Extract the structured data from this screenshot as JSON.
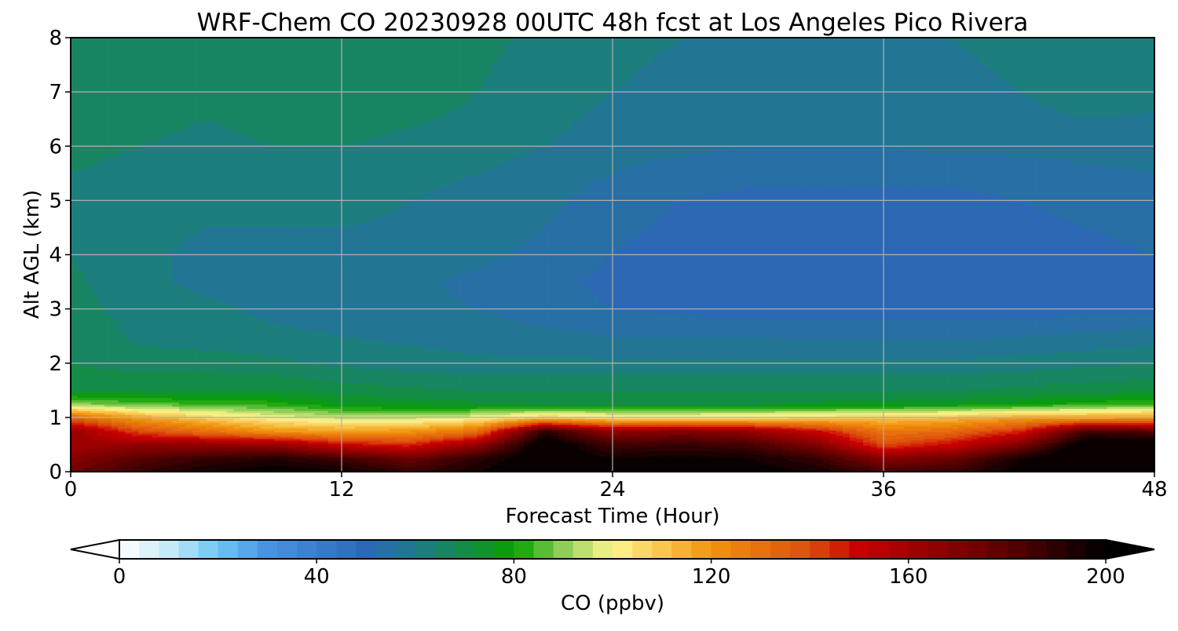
{
  "chart_data": {
    "type": "heatmap",
    "title": "WRF-Chem CO  20230928 00UTC 48h fcst at Los Angeles Pico Rivera",
    "xlabel": "Forecast Time (Hour)",
    "ylabel": "Alt AGL (km)",
    "xlim": [
      0,
      48
    ],
    "ylim": [
      0,
      8
    ],
    "x_ticks": [
      "0",
      "12",
      "24",
      "36",
      "48"
    ],
    "y_ticks": [
      "0",
      "1",
      "2",
      "3",
      "4",
      "5",
      "6",
      "7",
      "8"
    ],
    "grid": true,
    "x": [
      0,
      3,
      6,
      9,
      12,
      15,
      18,
      21,
      24,
      27,
      30,
      33,
      36,
      39,
      42,
      45,
      48
    ],
    "y": [
      0.0,
      0.25,
      0.5,
      0.75,
      1.0,
      1.25,
      1.5,
      2.0,
      2.5,
      3.0,
      3.5,
      4.0,
      5.0,
      5.5,
      6.0,
      7.0,
      8.0
    ],
    "z": [
      [
        175,
        188,
        196,
        200,
        198,
        188,
        196,
        205,
        200,
        202,
        200,
        196,
        185,
        188,
        200,
        210,
        212
      ],
      [
        168,
        180,
        188,
        192,
        185,
        175,
        190,
        205,
        196,
        198,
        196,
        188,
        168,
        175,
        195,
        210,
        212
      ],
      [
        160,
        165,
        165,
        165,
        150,
        145,
        165,
        205,
        185,
        188,
        185,
        170,
        140,
        150,
        170,
        205,
        208
      ],
      [
        165,
        140,
        130,
        120,
        118,
        120,
        130,
        190,
        165,
        170,
        165,
        150,
        128,
        132,
        145,
        185,
        180
      ],
      [
        135,
        118,
        108,
        100,
        95,
        95,
        100,
        110,
        105,
        105,
        106,
        108,
        110,
        112,
        118,
        118,
        120
      ],
      [
        90,
        86,
        84,
        82,
        76,
        74,
        73,
        72,
        72,
        72,
        72,
        73,
        74,
        76,
        78,
        82,
        84
      ],
      [
        72,
        72,
        72,
        72,
        70,
        69,
        68,
        68,
        68,
        68,
        68,
        68,
        68,
        68,
        69,
        70,
        71
      ],
      [
        68,
        66,
        66,
        65,
        63,
        62,
        61,
        61,
        61,
        61,
        61,
        61,
        61,
        61,
        62,
        63,
        64
      ],
      [
        68,
        63,
        62,
        61,
        60,
        59,
        58,
        57,
        56,
        56,
        56,
        55,
        55,
        55,
        56,
        57,
        58
      ],
      [
        66,
        62,
        61,
        59,
        58,
        57,
        56,
        54,
        52,
        51,
        50,
        50,
        50,
        50,
        50,
        51,
        51
      ],
      [
        65,
        61,
        59,
        58,
        57,
        57,
        55,
        53,
        51,
        50,
        50,
        50,
        50,
        50,
        50,
        50,
        51
      ],
      [
        64,
        61,
        59,
        59,
        59,
        59,
        57,
        55,
        52,
        50,
        50,
        50,
        50,
        50,
        50,
        51,
        52
      ],
      [
        63,
        61,
        61,
        61,
        61,
        60,
        59,
        57,
        54,
        52,
        51,
        51,
        51,
        51,
        52,
        53,
        54
      ],
      [
        64,
        62,
        62,
        62,
        62,
        61,
        60,
        58,
        56,
        54,
        53,
        53,
        53,
        53,
        54,
        55,
        56
      ],
      [
        66,
        64,
        63,
        64,
        64,
        63,
        62,
        60,
        58,
        57,
        56,
        56,
        56,
        57,
        57,
        58,
        58
      ],
      [
        67,
        66,
        65,
        66,
        67,
        66,
        64,
        62,
        60,
        59,
        58,
        58,
        58,
        59,
        60,
        62,
        61
      ],
      [
        68,
        67,
        66,
        67,
        68,
        67,
        65,
        63,
        61,
        60,
        59,
        59,
        59,
        60,
        61,
        63,
        62
      ]
    ],
    "colorbar": {
      "label": "CO  (ppbv)",
      "min": 0,
      "max": 200,
      "ticks": [
        "0",
        "40",
        "80",
        "120",
        "160",
        "200"
      ],
      "extend": "both",
      "stops": [
        {
          "value": 0,
          "color": "#ffffff"
        },
        {
          "value": 10,
          "color": "#c6ebf8"
        },
        {
          "value": 20,
          "color": "#6ec6f3"
        },
        {
          "value": 30,
          "color": "#4a93e0"
        },
        {
          "value": 50,
          "color": "#2c68b4"
        },
        {
          "value": 60,
          "color": "#1f7a8c"
        },
        {
          "value": 70,
          "color": "#138c47"
        },
        {
          "value": 80,
          "color": "#08a000"
        },
        {
          "value": 90,
          "color": "#8fce59"
        },
        {
          "value": 100,
          "color": "#fff78f"
        },
        {
          "value": 120,
          "color": "#f2940c"
        },
        {
          "value": 140,
          "color": "#dd4e0d"
        },
        {
          "value": 150,
          "color": "#c80000"
        },
        {
          "value": 175,
          "color": "#6e0000"
        },
        {
          "value": 200,
          "color": "#000000"
        }
      ]
    }
  }
}
